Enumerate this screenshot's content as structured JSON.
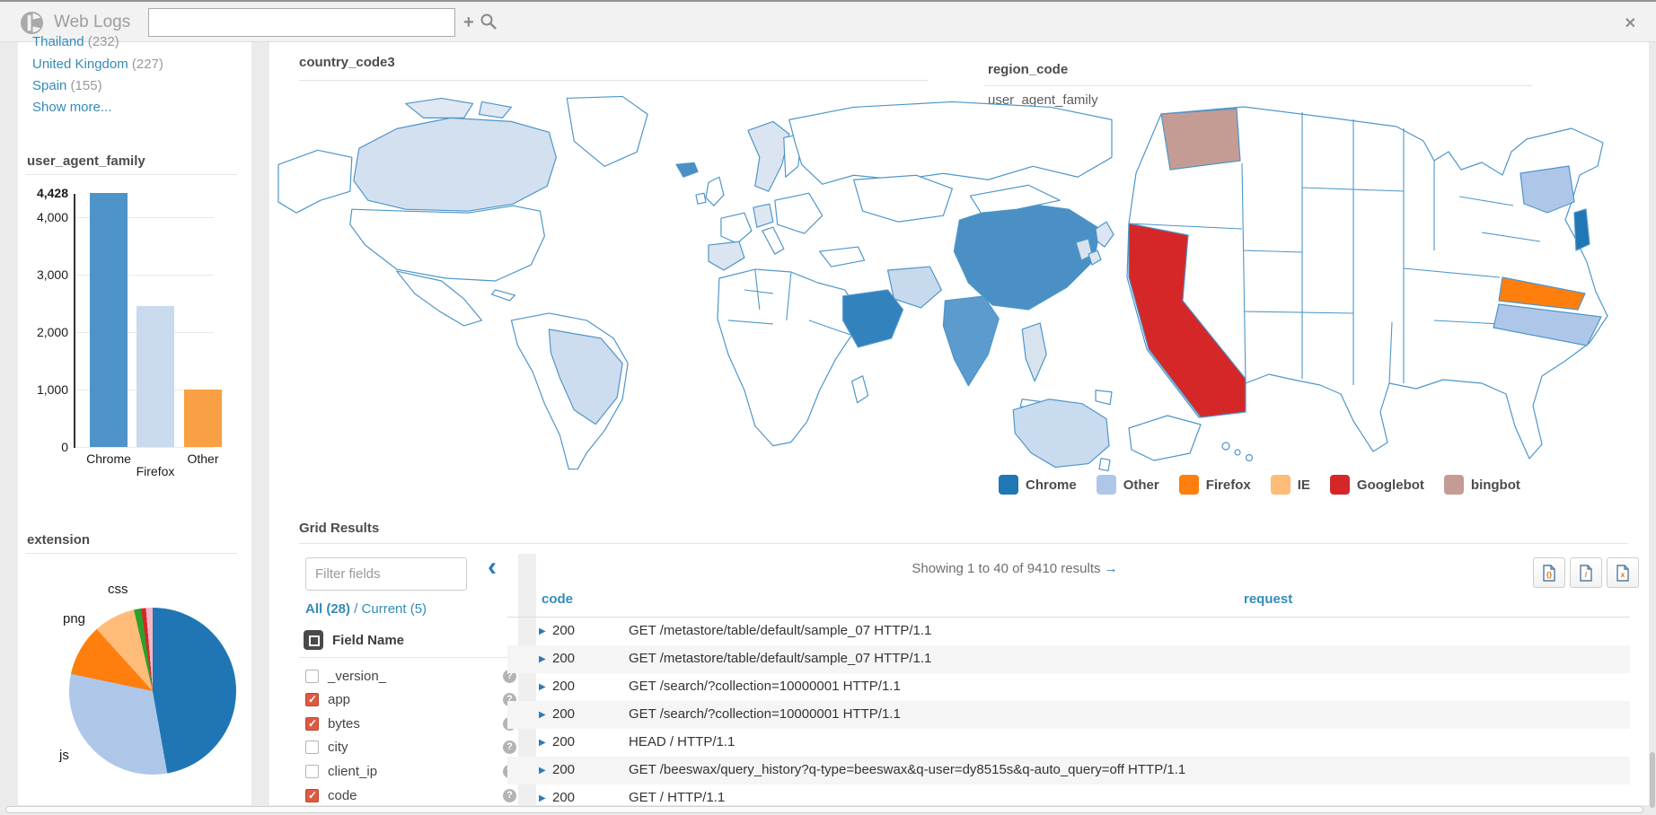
{
  "header": {
    "title": "Web Logs",
    "search_value": "",
    "add_icon": "+",
    "close_icon": "✕"
  },
  "sidebar": {
    "facets": [
      {
        "label": "Thailand",
        "count": "(232)"
      },
      {
        "label": "United Kingdom",
        "count": "(227)"
      },
      {
        "label": "Spain",
        "count": "(155)"
      }
    ],
    "show_more": "Show more..."
  },
  "chart_data": [
    {
      "type": "bar",
      "title": "user_agent_family",
      "categories": [
        "Chrome",
        "Firefox",
        "Other"
      ],
      "values": [
        4428,
        2450,
        1000
      ],
      "colors": [
        "#4f94c8",
        "#c9d9ee",
        "#f9a045"
      ],
      "ylim": [
        0,
        4428
      ],
      "yticks": [
        {
          "label": "4,428",
          "value": 4428,
          "bold": true
        },
        {
          "label": "4,000",
          "value": 4000,
          "bold": false
        },
        {
          "label": "3,000",
          "value": 3000,
          "bold": false
        },
        {
          "label": "2,000",
          "value": 2000,
          "bold": false
        },
        {
          "label": "1,000",
          "value": 1000,
          "bold": false
        },
        {
          "label": "0",
          "value": 0,
          "bold": false
        }
      ]
    },
    {
      "type": "pie",
      "title": "extension",
      "slices": [
        {
          "label": "",
          "value": 47.2,
          "color": "#2076b4"
        },
        {
          "label": "js",
          "value": 31.1,
          "color": "#aec7e8"
        },
        {
          "label": "png",
          "value": 10.0,
          "color": "#ff7f0e"
        },
        {
          "label": "css",
          "value": 8.1,
          "color": "#ffbb78"
        },
        {
          "label": "",
          "value": 1.4,
          "color": "#2ca02c"
        },
        {
          "label": "",
          "value": 0.9,
          "color": "#d62728"
        },
        {
          "label": "",
          "value": 1.3,
          "color": "#f4b6c2"
        }
      ],
      "visible_labels": [
        "css",
        "png",
        "js"
      ]
    },
    {
      "type": "choropleth",
      "title": "country_code3",
      "regions": [
        {
          "name": "Canada",
          "category": "Other"
        },
        {
          "name": "Brazil",
          "category": "Other"
        },
        {
          "name": "China",
          "category": "Chrome"
        },
        {
          "name": "India",
          "category": "Chrome"
        },
        {
          "name": "Saudi Arabia",
          "category": "Chrome"
        },
        {
          "name": "Iran",
          "category": "Other"
        },
        {
          "name": "Australia",
          "category": "Other"
        },
        {
          "name": "Spain",
          "category": "Other"
        },
        {
          "name": "Scandinavia",
          "category": "Other"
        },
        {
          "name": "Iceland",
          "category": "Chrome"
        },
        {
          "name": "Thailand",
          "category": "Other"
        },
        {
          "name": "South Korea",
          "category": "Other"
        },
        {
          "name": "Japan",
          "category": "Other"
        }
      ]
    },
    {
      "type": "choropleth",
      "title": "region_code",
      "subtitle": "user_agent_family",
      "regions": [
        {
          "name": "Washington",
          "category": "bingbot"
        },
        {
          "name": "California",
          "category": "Googlebot"
        },
        {
          "name": "New York",
          "category": "Other"
        },
        {
          "name": "New Jersey",
          "category": "Chrome"
        },
        {
          "name": "Virginia",
          "category": "Firefox"
        },
        {
          "name": "North Carolina",
          "category": "Other"
        }
      ]
    }
  ],
  "map_fills": {
    "world": {
      "canada": "#d3e0ef",
      "arctic1": "#dfe8f3",
      "arctic2": "#dfe8f3",
      "brazil": "#cddcee",
      "iceland": "#4a90c4",
      "scandinavia": "#dbe5f1",
      "spain": "#dbe5f1",
      "germany": "#dde7f2",
      "iran": "#c6d9ed",
      "saudi": "#3182bd",
      "china": "#4a90c4",
      "india": "#5b9bcd",
      "thailand": "#d8e3f0",
      "korea": "#d8e3f0",
      "japan1": "#dce6f2",
      "japan2": "#dce6f2",
      "australia": "#c9dbee"
    },
    "us": {
      "washington": "#c49c94",
      "california": "#d62728",
      "newyork": "#aec7e8",
      "newjersey": "#1f77b4",
      "virginia": "#ff7f0e",
      "northcarolina": "#aec7e8"
    }
  },
  "legend": {
    "items": [
      {
        "label": "Chrome",
        "color": "#1f77b4"
      },
      {
        "label": "Other",
        "color": "#aec7e8"
      },
      {
        "label": "Firefox",
        "color": "#ff7f0e"
      },
      {
        "label": "IE",
        "color": "#ffbb78"
      },
      {
        "label": "Googlebot",
        "color": "#d62728"
      },
      {
        "label": "bingbot",
        "color": "#c49c94"
      }
    ]
  },
  "grid": {
    "title": "Grid Results",
    "filter_placeholder": "Filter fields",
    "collapse_icon": "‹",
    "links": {
      "all": "All (28)",
      "sep": " / ",
      "current": "Current (5)"
    },
    "field_header": "Field Name",
    "fields": [
      {
        "name": "_version_",
        "checked": false
      },
      {
        "name": "app",
        "checked": true
      },
      {
        "name": "bytes",
        "checked": true
      },
      {
        "name": "city",
        "checked": false
      },
      {
        "name": "client_ip",
        "checked": false
      },
      {
        "name": "code",
        "checked": true
      }
    ],
    "help_icon": "?",
    "showing": "Showing 1 to 40 of 9410 results ",
    "arrow_icon": "→",
    "row_arrow_icon": "▶",
    "columns": [
      "code",
      "request"
    ],
    "rows": [
      {
        "code": "200",
        "request": "GET /metastore/table/default/sample_07 HTTP/1.1"
      },
      {
        "code": "200",
        "request": "GET /metastore/table/default/sample_07 HTTP/1.1"
      },
      {
        "code": "200",
        "request": "GET /search/?collection=10000001 HTTP/1.1"
      },
      {
        "code": "200",
        "request": "GET /search/?collection=10000001 HTTP/1.1"
      },
      {
        "code": "200",
        "request": "HEAD / HTTP/1.1"
      },
      {
        "code": "200",
        "request": "GET /beeswax/query_history?q-type=beeswax&q-user=dy8515s&q-auto_query=off HTTP/1.1"
      },
      {
        "code": "200",
        "request": "GET / HTTP/1.1"
      }
    ],
    "export_buttons": [
      {
        "name": "export-json-button",
        "glyph": "{}"
      },
      {
        "name": "export-csv-button",
        "glyph": "/"
      },
      {
        "name": "export-xls-button",
        "glyph": "x"
      }
    ]
  }
}
